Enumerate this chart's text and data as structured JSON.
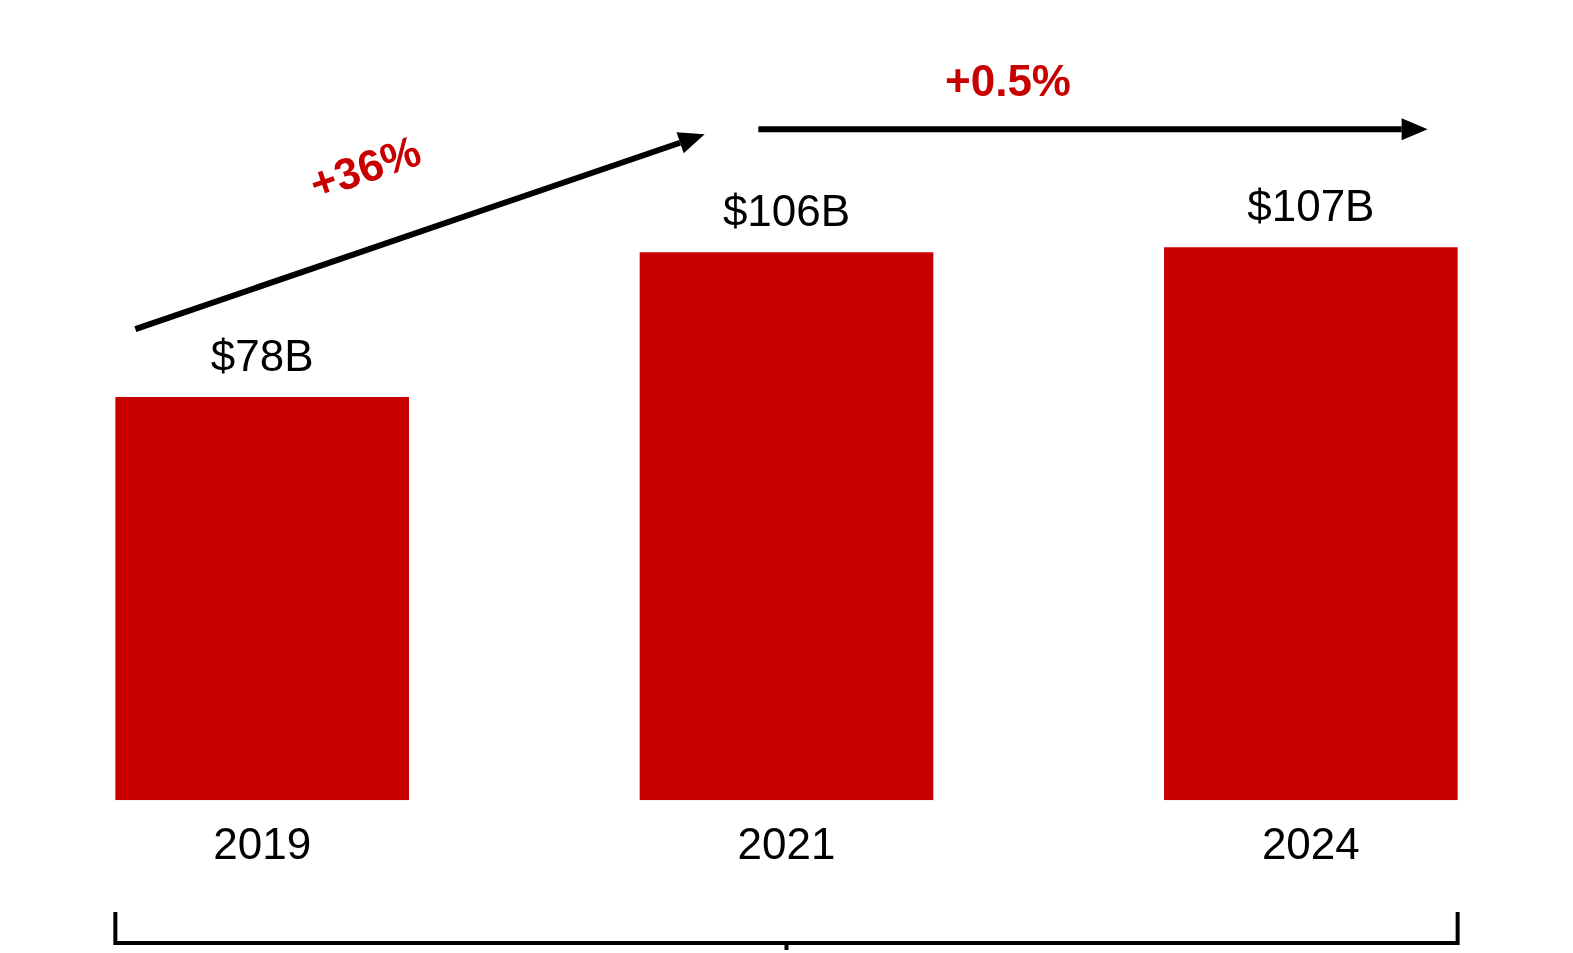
{
  "chart_data": {
    "type": "bar",
    "categories": [
      "2019",
      "2021",
      "2024"
    ],
    "values": [
      78,
      106,
      107
    ],
    "color": "#c80000",
    "value_labels": [
      "$78B",
      "$106B",
      "$107B"
    ],
    "annotations": [
      "+36%",
      "+0.5%"
    ],
    "grid": false,
    "legend": false
  }
}
